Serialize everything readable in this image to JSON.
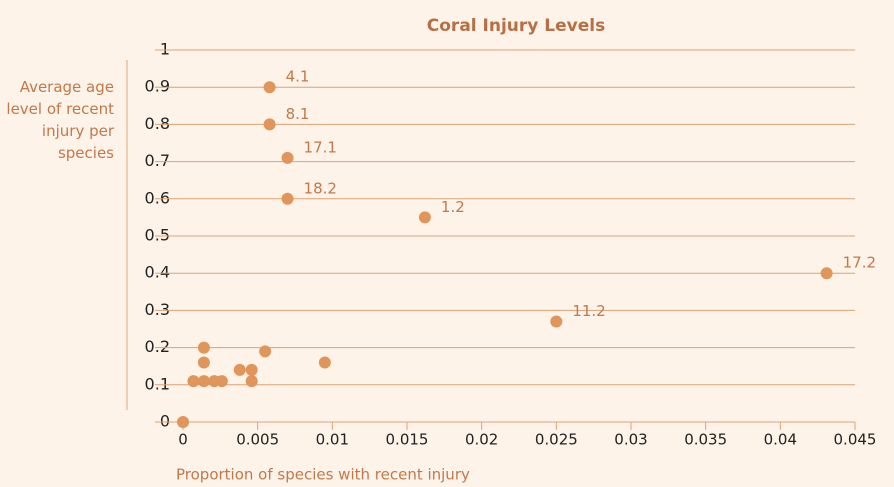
{
  "chart_data": {
    "type": "scatter",
    "title": "Coral Injury Levels",
    "xlabel": "Proportion of species with recent injury",
    "ylabel": "Average age level of recent injury per species",
    "x": [
      0,
      0.0058,
      0.0058,
      0.007,
      0.007,
      0.0162,
      0.0431,
      0.025,
      0.0014,
      0.0014,
      0.0055,
      0.0095,
      0.0038,
      0.0046,
      0.0007,
      0.0014,
      0.0021,
      0.0026,
      0.0046
    ],
    "values": [
      0,
      0.9,
      0.8,
      0.71,
      0.6,
      0.55,
      0.4,
      0.27,
      0.2,
      0.16,
      0.19,
      0.16,
      0.14,
      0.14,
      0.11,
      0.11,
      0.11,
      0.11,
      0.11
    ],
    "point_labels": [
      null,
      "4.1",
      "8.1",
      "17.1",
      "18.2",
      "1.2",
      "17.2",
      "11.2",
      null,
      null,
      null,
      null,
      null,
      null,
      null,
      null,
      null,
      null,
      null
    ],
    "color": "#e0965a",
    "xlim": [
      0,
      0.045
    ],
    "xticks": [
      0,
      0.005,
      0.01,
      0.015,
      0.02,
      0.025,
      0.03,
      0.035,
      0.04,
      0.045
    ],
    "ylim": [
      0,
      1
    ],
    "yticks": [
      0,
      0.1,
      0.2,
      0.3,
      0.4,
      0.5,
      0.6,
      0.7,
      0.8,
      0.9,
      1
    ],
    "grid": true
  }
}
